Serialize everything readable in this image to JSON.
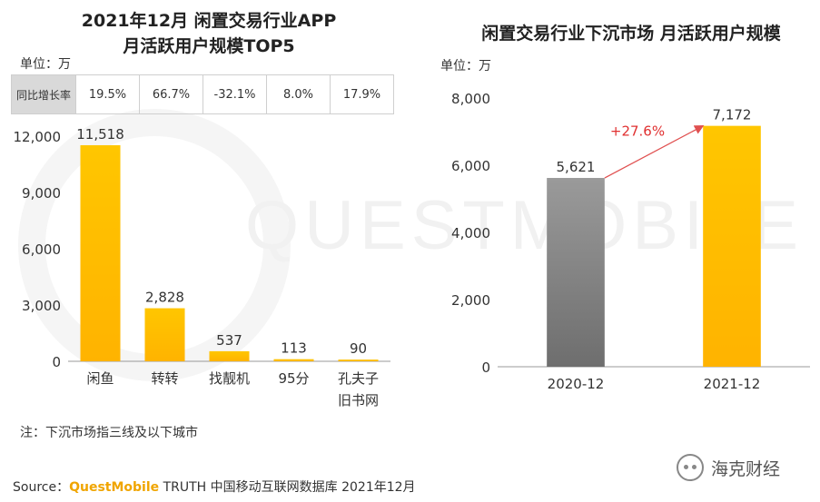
{
  "left": {
    "title_line1": "2021年12月 闲置交易行业APP",
    "title_line2": "月活跃用户规模TOP5",
    "unit": "单位：万",
    "growth_header": "同比增长率",
    "growth": [
      "19.5%",
      "66.7%",
      "-32.1%",
      "8.0%",
      "17.9%"
    ]
  },
  "right": {
    "title": "闲置交易行业下沉市场 月活跃用户规模",
    "unit": "单位：万"
  },
  "note": "注：下沉市场指三线及以下城市",
  "source": {
    "prefix": "Source：",
    "brand": "QuestMobile",
    "rest": " TRUTH 中国移动互联网数据库 2021年12月"
  },
  "watermark": "QUESTMOBILE",
  "wechat": {
    "label": "海克财经",
    "icon": "wechat-icon"
  },
  "colors": {
    "gold": "#FFC000",
    "gray": "#7a7a7a",
    "arrow": "#e05050"
  },
  "chart_data": [
    {
      "type": "bar",
      "categories": [
        "闲鱼",
        "转转",
        "找靓机",
        "95分",
        "孔夫子旧书网"
      ],
      "category_lines": [
        [
          "闲鱼"
        ],
        [
          "转转"
        ],
        [
          "找靓机"
        ],
        [
          "95分"
        ],
        [
          "孔夫子",
          "旧书网"
        ]
      ],
      "values": [
        11518,
        2828,
        537,
        113,
        90
      ],
      "value_labels": [
        "11,518",
        "2,828",
        "537",
        "113",
        "90"
      ],
      "yticks": [
        "0",
        "3,000",
        "6,000",
        "9,000",
        "12,000"
      ],
      "ytick_values": [
        0,
        3000,
        6000,
        9000,
        12000
      ],
      "ylim": [
        0,
        12000
      ],
      "grid": false
    },
    {
      "type": "bar",
      "categories": [
        "2020-12",
        "2021-12"
      ],
      "values": [
        5621,
        7172
      ],
      "value_labels": [
        "5,621",
        "7,172"
      ],
      "yticks": [
        "0",
        "2,000",
        "4,000",
        "6,000",
        "8,000"
      ],
      "ytick_values": [
        0,
        2000,
        4000,
        6000,
        8000
      ],
      "ylim": [
        0,
        8000
      ],
      "growth_annotation": "+27.6%",
      "grid": false
    }
  ]
}
